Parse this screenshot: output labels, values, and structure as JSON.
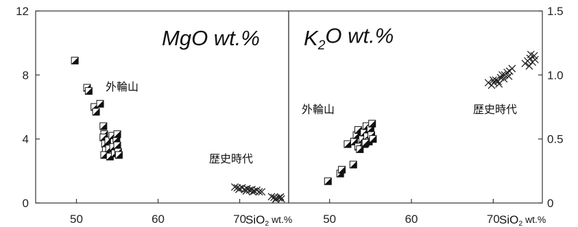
{
  "chart_data": [
    {
      "type": "scatter",
      "title": "MgO wt.%",
      "x_label": "SiO2 wt.%",
      "xlim": [
        45,
        76
      ],
      "ylim": [
        0,
        12
      ],
      "x_ticks": [
        50,
        60,
        70
      ],
      "y_ticks": [
        0,
        4,
        8,
        12
      ],
      "y_axis_side": "left",
      "annotations": [
        "外輪山",
        "歴史時代"
      ],
      "series": [
        {
          "marker": "half-filled-square",
          "points": [
            [
              49.8,
              8.9
            ],
            [
              51.3,
              7.2
            ],
            [
              51.5,
              7.0
            ],
            [
              52.2,
              6.0
            ],
            [
              52.4,
              5.7
            ],
            [
              52.9,
              6.2
            ],
            [
              53.3,
              4.8
            ],
            [
              53.4,
              4.3
            ],
            [
              53.3,
              4.1
            ],
            [
              53.5,
              3.7
            ],
            [
              53.6,
              3.3
            ],
            [
              53.4,
              3.0
            ],
            [
              53.9,
              3.9
            ],
            [
              54.0,
              3.4
            ],
            [
              54.1,
              2.9
            ],
            [
              54.4,
              4.2
            ],
            [
              54.6,
              3.8
            ],
            [
              54.5,
              3.5
            ],
            [
              54.7,
              3.1
            ],
            [
              54.9,
              4.0
            ],
            [
              55.0,
              3.6
            ],
            [
              55.1,
              3.2
            ],
            [
              55.2,
              3.0
            ],
            [
              55.0,
              4.3
            ]
          ]
        },
        {
          "marker": "cross",
          "points": [
            [
              69.4,
              1.0
            ],
            [
              69.7,
              0.95
            ],
            [
              70.0,
              0.9
            ],
            [
              70.3,
              0.95
            ],
            [
              70.6,
              0.85
            ],
            [
              70.9,
              0.9
            ],
            [
              71.2,
              0.8
            ],
            [
              71.5,
              0.85
            ],
            [
              71.8,
              0.75
            ],
            [
              72.1,
              0.8
            ],
            [
              72.4,
              0.7
            ],
            [
              72.7,
              0.7
            ],
            [
              69.9,
              0.85
            ],
            [
              70.8,
              0.75
            ],
            [
              71.6,
              0.7
            ],
            [
              73.9,
              0.4
            ],
            [
              74.2,
              0.35
            ],
            [
              74.5,
              0.3
            ],
            [
              74.8,
              0.32
            ],
            [
              75.1,
              0.26
            ],
            [
              74.4,
              0.22
            ],
            [
              75.0,
              0.38
            ]
          ]
        }
      ]
    },
    {
      "type": "scatter",
      "title": "K2O wt.%",
      "x_label": "SiO2 wt.%",
      "xlim": [
        45,
        76
      ],
      "ylim": [
        0,
        1.5
      ],
      "x_ticks": [
        50,
        60,
        70
      ],
      "y_ticks": [
        0,
        0.5,
        1.0,
        1.5
      ],
      "y_tick_labels": [
        "0",
        "0.5",
        "1.0",
        "1.5"
      ],
      "y_axis_side": "right",
      "annotations": [
        "外輪山",
        "歴史時代"
      ],
      "series": [
        {
          "marker": "half-filled-square",
          "points": [
            [
              49.8,
              0.17
            ],
            [
              51.3,
              0.23
            ],
            [
              51.5,
              0.26
            ],
            [
              52.9,
              0.3
            ],
            [
              52.2,
              0.46
            ],
            [
              53.0,
              0.48
            ],
            [
              53.3,
              0.53
            ],
            [
              53.5,
              0.57
            ],
            [
              53.5,
              0.44
            ],
            [
              53.7,
              0.42
            ],
            [
              54.0,
              0.5
            ],
            [
              54.2,
              0.55
            ],
            [
              54.3,
              0.46
            ],
            [
              54.5,
              0.6
            ],
            [
              54.6,
              0.52
            ],
            [
              54.8,
              0.48
            ],
            [
              55.0,
              0.58
            ],
            [
              55.1,
              0.53
            ],
            [
              55.2,
              0.62
            ],
            [
              55.3,
              0.5
            ],
            [
              54.4,
              0.47
            ]
          ]
        },
        {
          "marker": "cross",
          "points": [
            [
              69.4,
              0.94
            ],
            [
              69.8,
              0.92
            ],
            [
              70.1,
              0.94
            ],
            [
              70.3,
              0.96
            ],
            [
              70.6,
              0.95
            ],
            [
              70.9,
              0.98
            ],
            [
              71.1,
              1.0
            ],
            [
              71.4,
              1.0
            ],
            [
              71.7,
              1.02
            ],
            [
              72.0,
              1.03
            ],
            [
              72.3,
              1.05
            ],
            [
              70.0,
              0.96
            ],
            [
              70.7,
              0.93
            ],
            [
              71.3,
              0.97
            ],
            [
              71.9,
              0.99
            ],
            [
              73.9,
              1.09
            ],
            [
              74.2,
              1.11
            ],
            [
              74.5,
              1.13
            ],
            [
              74.8,
              1.1
            ],
            [
              75.1,
              1.12
            ],
            [
              74.4,
              1.07
            ],
            [
              75.0,
              1.15
            ],
            [
              74.6,
              1.16
            ]
          ]
        }
      ]
    }
  ]
}
